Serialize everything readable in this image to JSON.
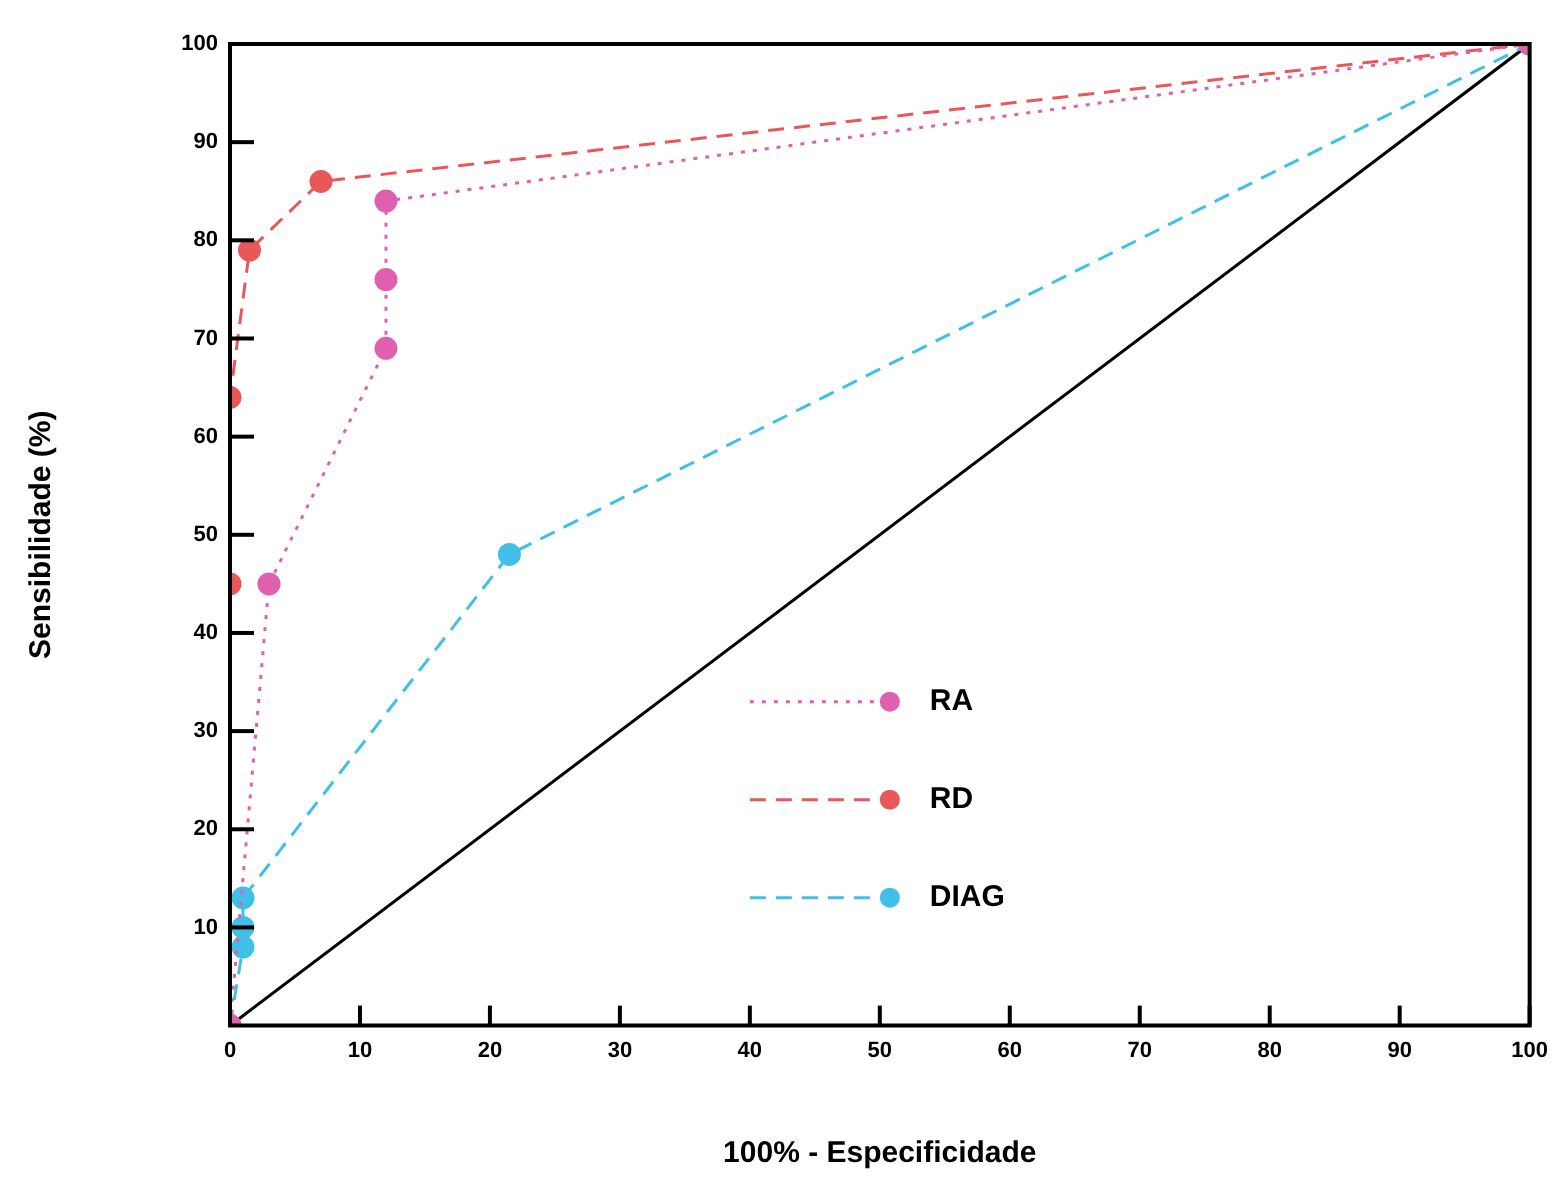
{
  "chart_data": {
    "type": "line",
    "xlabel": "100% - Especificidade",
    "ylabel": "Sensibilidade (%)",
    "xlim": [
      0,
      100
    ],
    "ylim": [
      0,
      100
    ],
    "xticks": [
      0,
      10,
      20,
      30,
      40,
      50,
      60,
      70,
      80,
      90,
      100
    ],
    "yticks": [
      10,
      20,
      30,
      40,
      50,
      60,
      70,
      80,
      90,
      100
    ],
    "grid": false,
    "legend": "bottom right",
    "marker": "circle",
    "series": [
      {
        "name": "RA",
        "color": "#e060b0",
        "line_style": "dotted",
        "x": [
          0,
          3,
          12,
          12,
          12,
          100
        ],
        "values": [
          0,
          45,
          69,
          76,
          84,
          100
        ]
      },
      {
        "name": "RD",
        "color": "#e85858",
        "line_style": "dashed",
        "x": [
          0,
          0,
          0,
          1.5,
          7,
          100
        ],
        "values": [
          0,
          45,
          64,
          79,
          86,
          100
        ]
      },
      {
        "name": "DIAG",
        "color": "#40c0e8",
        "line_style": "dashed",
        "x": [
          0,
          1,
          1,
          1,
          21.5,
          100
        ],
        "values": [
          0,
          8,
          10,
          13,
          48,
          100
        ]
      },
      {
        "type": "line",
        "color": "#000000",
        "line_style": "solid",
        "marker": "none",
        "x": [
          0,
          100
        ],
        "values": [
          0,
          100
        ]
      }
    ]
  }
}
